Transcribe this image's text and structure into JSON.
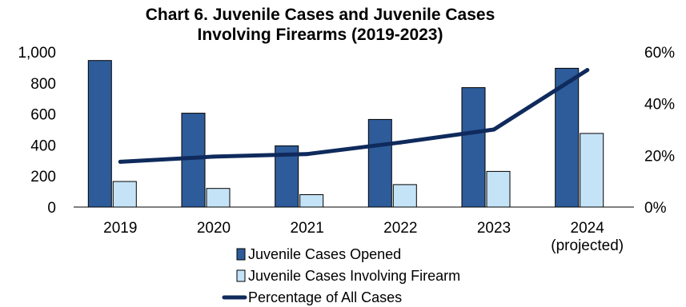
{
  "chart_data": {
    "type": "bar",
    "title": [
      "Chart 6. Juvenile Cases and Juvenile Cases",
      "Involving Firearms (2019-2023)"
    ],
    "categories": [
      [
        "2019"
      ],
      [
        "2020"
      ],
      [
        "2021"
      ],
      [
        "2022"
      ],
      [
        "2023"
      ],
      [
        "2024",
        "(projected)"
      ]
    ],
    "series": [
      {
        "name": "Juvenile Cases Opened",
        "type": "bar",
        "axis": "left",
        "color": "#2E5C9A",
        "values": [
          945,
          605,
          395,
          565,
          770,
          895
        ]
      },
      {
        "name": "Juvenile Cases Involving Firearm",
        "type": "bar",
        "axis": "left",
        "color": "#C5E3F7",
        "values": [
          165,
          120,
          80,
          145,
          230,
          475
        ]
      },
      {
        "name": "Percentage of All Cases",
        "type": "line",
        "axis": "right",
        "color": "#0F2A5C",
        "values": [
          17.5,
          19.5,
          20.5,
          25,
          30,
          53
        ]
      }
    ],
    "y_left": {
      "min": 0,
      "max": 1000,
      "ticks": [
        0,
        200,
        400,
        600,
        800,
        1000
      ],
      "tick_labels": [
        "0",
        "200",
        "400",
        "600",
        "800",
        "1,000"
      ]
    },
    "y_right": {
      "min": 0,
      "max": 60,
      "ticks": [
        0,
        20,
        40,
        60
      ],
      "tick_labels": [
        "0%",
        "20%",
        "40%",
        "60%"
      ]
    },
    "grid": false,
    "legend_position": "bottom"
  }
}
